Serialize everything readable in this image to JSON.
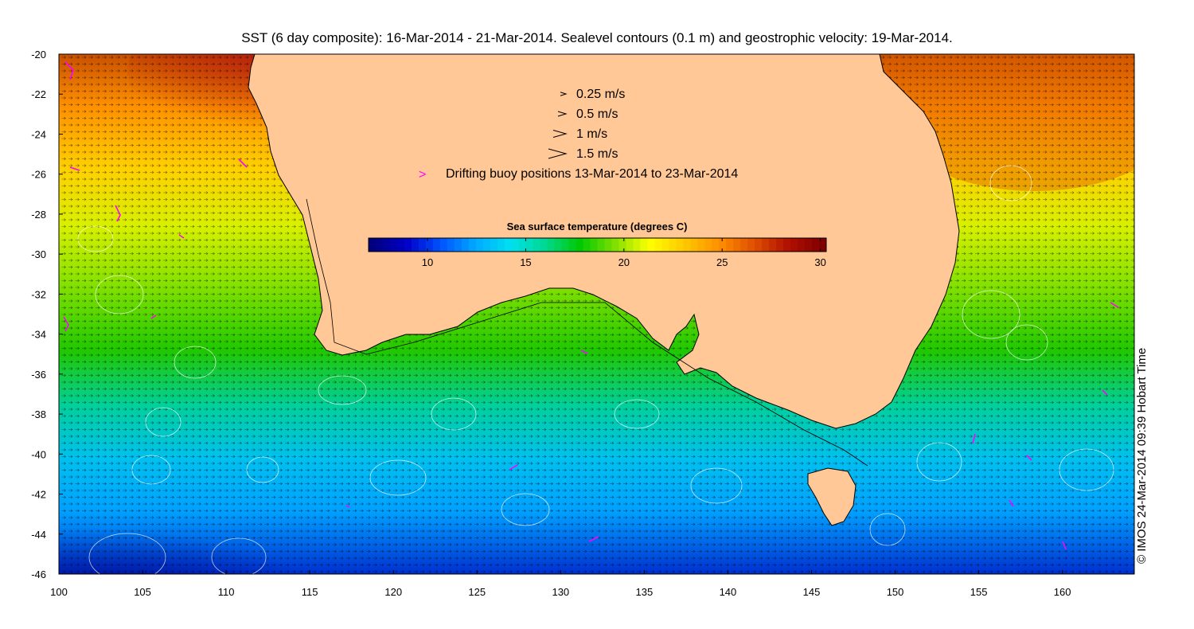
{
  "title": "SST (6 day composite): 16-Mar-2014 - 21-Mar-2014. Sealevel contours (0.1 m) and geostrophic velocity: 19-Mar-2014.",
  "credit": "© IMOS 24-Mar-2014 09:39 Hobart Time",
  "axes": {
    "x_ticks": [
      "100",
      "105",
      "110",
      "115",
      "120",
      "125",
      "130",
      "135",
      "140",
      "145",
      "150",
      "155",
      "160"
    ],
    "y_ticks": [
      "-20",
      "-22",
      "-24",
      "-26",
      "-28",
      "-30",
      "-32",
      "-34",
      "-36",
      "-38",
      "-40",
      "-42",
      "-44",
      "-46"
    ],
    "lon_range": [
      100,
      164.3
    ],
    "lat_range": [
      -46,
      -20
    ]
  },
  "legend": {
    "velocity": [
      {
        "label": "0.25 m/s",
        "speed": 0.25
      },
      {
        "label": "0.5 m/s",
        "speed": 0.5
      },
      {
        "label": "1 m/s",
        "speed": 1
      },
      {
        "label": "1.5 m/s",
        "speed": 1.5
      }
    ],
    "buoy_label": "Drifting buoy positions 13-Mar-2014 to 23-Mar-2014",
    "buoy_color": "#ff00ff"
  },
  "colorbar": {
    "title": "Sea surface temperature (degrees C)",
    "range": [
      7,
      30.3
    ],
    "ticks": [
      "10",
      "15",
      "20",
      "25",
      "30"
    ],
    "colormap": [
      "#00007f",
      "#0000c8",
      "#0055ff",
      "#00aaff",
      "#00e0f0",
      "#00d890",
      "#00c800",
      "#7fe000",
      "#ffff00",
      "#ffc800",
      "#ff9000",
      "#e05000",
      "#b01000",
      "#800000"
    ]
  },
  "colors": {
    "land": "#ffc896",
    "coastline": "#000000",
    "contour": "#ffffff",
    "arrow": "#000000"
  }
}
